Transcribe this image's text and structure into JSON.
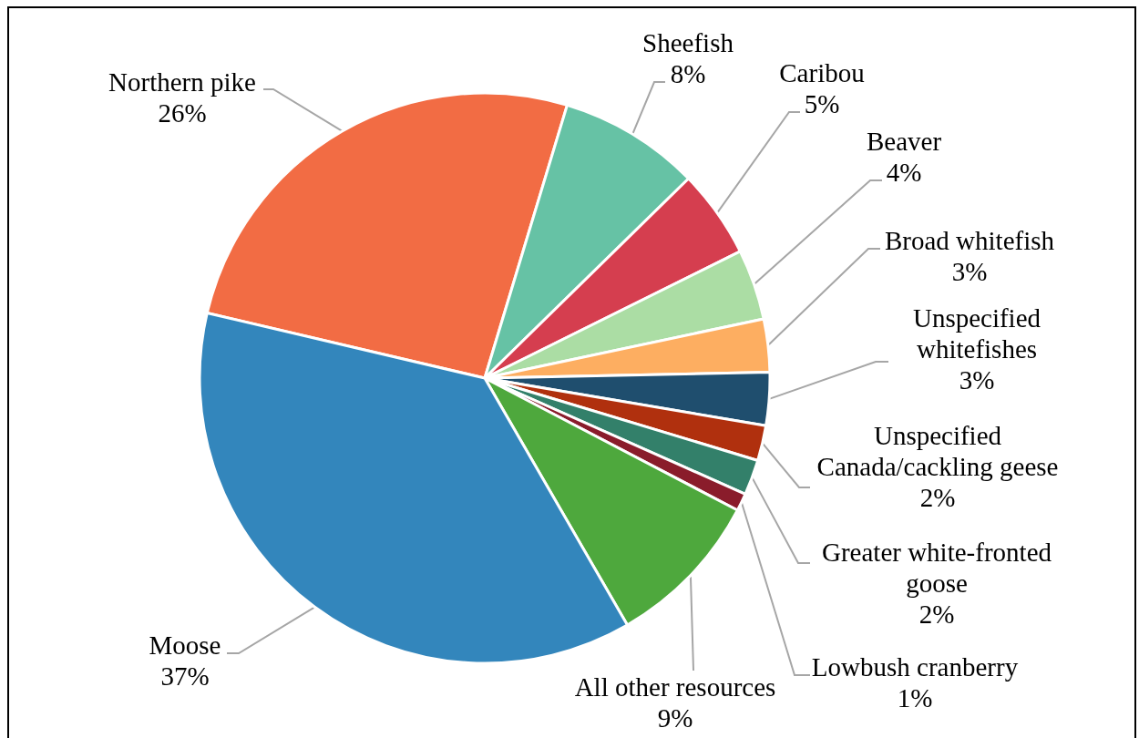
{
  "chart_data": {
    "type": "pie",
    "categories": [
      "Northern pike",
      "Sheefish",
      "Caribou",
      "Beaver",
      "Broad whitefish",
      "Unspecified whitefishes",
      "Unspecified Canada/cackling geese",
      "Greater white-fronted goose",
      "Lowbush cranberry",
      "All other resources",
      "Moose"
    ],
    "values": [
      26,
      8,
      5,
      4,
      3,
      3,
      2,
      2,
      1,
      9,
      37
    ],
    "value_labels": [
      "26%",
      "8%",
      "5%",
      "4%",
      "3%",
      "3%",
      "2%",
      "2%",
      "1%",
      "9%",
      "37%"
    ],
    "colors": [
      "#f26c44",
      "#66c2a5",
      "#d53e4f",
      "#abdda4",
      "#fdae61",
      "#1f4e6e",
      "#b0300e",
      "#33806a",
      "#8a1c2b",
      "#4ea83d",
      "#3386bc"
    ]
  }
}
